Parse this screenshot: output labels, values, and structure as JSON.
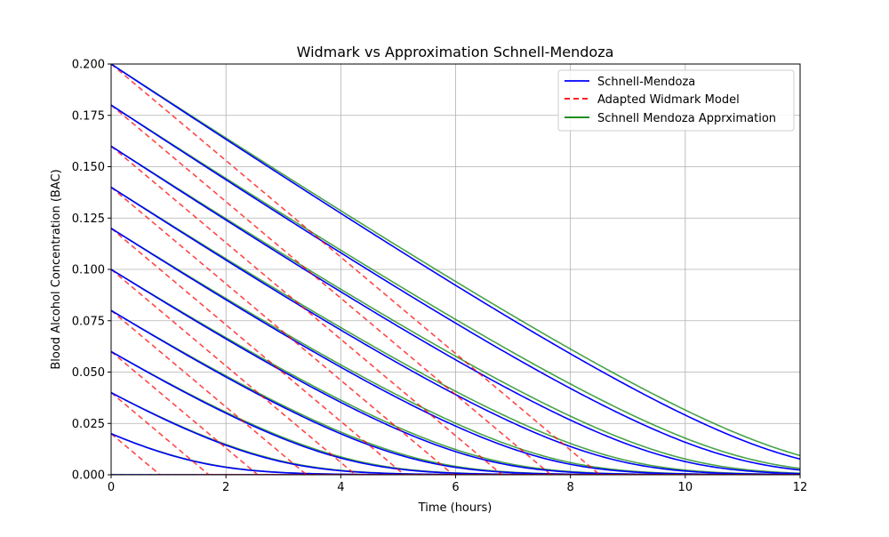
{
  "chart_data": {
    "type": "line",
    "title": "Widmark vs Approximation Schnell-Mendoza",
    "xlabel": "Time (hours)",
    "ylabel": "Blood Alcohol Concentration (BAC)",
    "xlim": [
      0,
      12
    ],
    "ylim": [
      0,
      0.2
    ],
    "x_ticks": [
      "0",
      "2",
      "4",
      "6",
      "8",
      "10",
      "12"
    ],
    "y_ticks": [
      "0.000",
      "0.025",
      "0.050",
      "0.075",
      "0.100",
      "0.125",
      "0.150",
      "0.175",
      "0.200"
    ],
    "grid": true,
    "legend_position": "top-right",
    "initial_bac": [
      0.0,
      0.02,
      0.04,
      0.06,
      0.08,
      0.1,
      0.12,
      0.14,
      0.16,
      0.18,
      0.2
    ],
    "widmark_elimination_rate": 0.0235,
    "series": [
      {
        "name": "Schnell-Mendoza",
        "color": "#0000ff",
        "style": "solid"
      },
      {
        "name": "Adapted Widmark Model",
        "color": "#ff0000",
        "style": "dashed"
      },
      {
        "name": "Schnell Mendoza Apprximation",
        "color": "#008000",
        "style": "solid"
      }
    ]
  }
}
